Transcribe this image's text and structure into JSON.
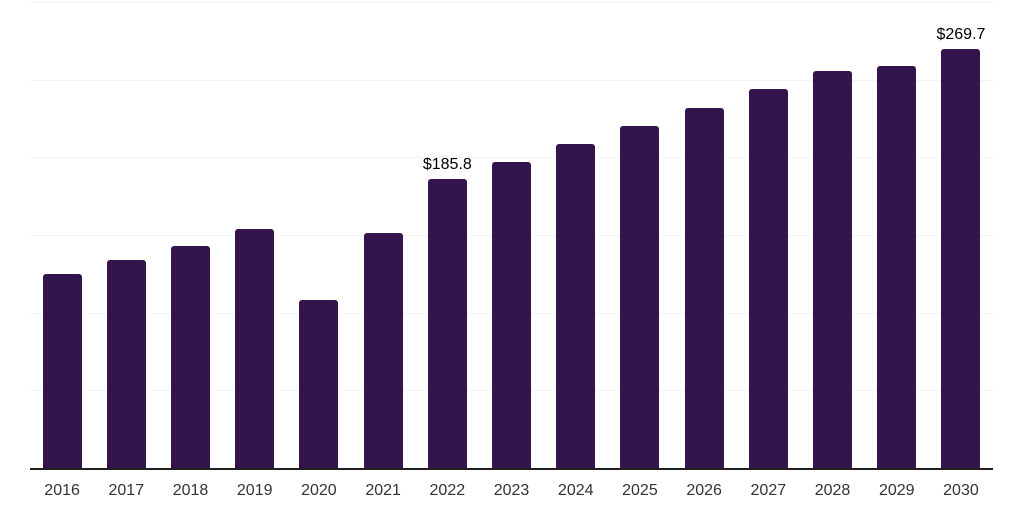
{
  "chart_data": {
    "type": "bar",
    "title": "",
    "xlabel": "",
    "ylabel": "",
    "categories": [
      "2016",
      "2017",
      "2018",
      "2019",
      "2020",
      "2021",
      "2022",
      "2023",
      "2024",
      "2025",
      "2026",
      "2027",
      "2028",
      "2029",
      "2030"
    ],
    "values": [
      125.0,
      133.8,
      142.9,
      154.0,
      107.9,
      151.1,
      185.8,
      197.0,
      208.8,
      220.5,
      231.9,
      244.0,
      255.8,
      258.5,
      269.7
    ],
    "point_labels": [
      "",
      "",
      "",
      "",
      "",
      "",
      "$185.8",
      "",
      "",
      "",
      "",
      "",
      "",
      "",
      "$269.7"
    ],
    "ylim": [
      0,
      300
    ],
    "grid_step": 50,
    "grid": true,
    "legend": false,
    "colors": {
      "bar": "#33144c",
      "gridline": "#f3f3f3",
      "axis_line": "#1f1f1f",
      "x_label": "#333333",
      "point_label": "#000000",
      "background": "#ffffff"
    }
  }
}
